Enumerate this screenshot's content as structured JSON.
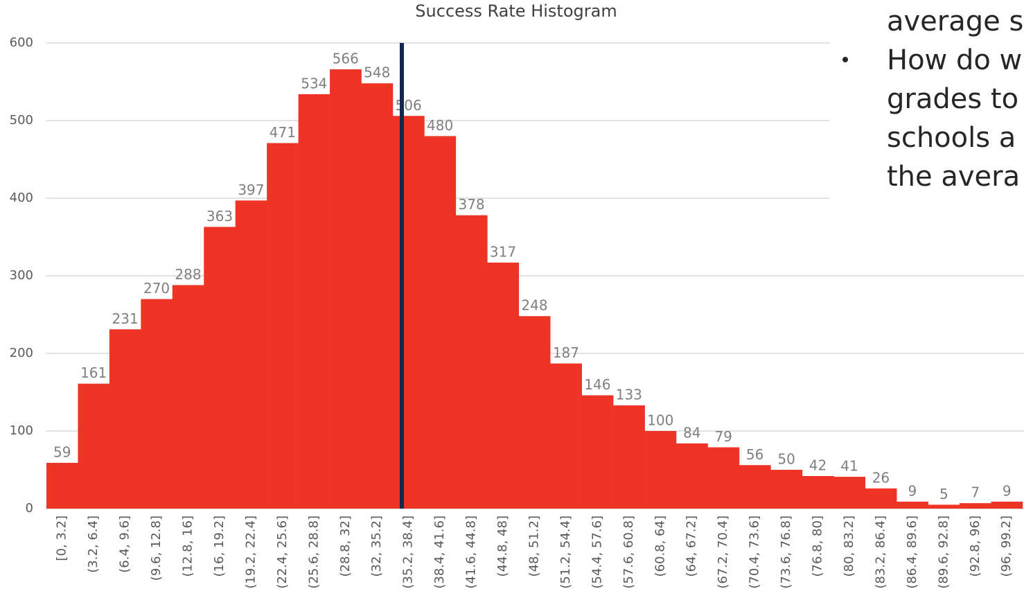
{
  "chart_data": {
    "type": "bar",
    "title": "Success Rate Histogram",
    "categories": [
      "[0, 3.2]",
      "(3.2, 6.4]",
      "(6.4, 9.6]",
      "(9.6, 12.8]",
      "(12.8, 16]",
      "(16, 19.2]",
      "(19.2, 22.4]",
      "(22.4, 25.6]",
      "(25.6, 28.8]",
      "(28.8, 32]",
      "(32, 35.2]",
      "(35.2, 38.4]",
      "(38.4, 41.6]",
      "(41.6, 44.8]",
      "(44.8, 48]",
      "(48, 51.2]",
      "(51.2, 54.4]",
      "(54.4, 57.6]",
      "(57.6, 60.8]",
      "(60.8, 64]",
      "(64, 67.2]",
      "(67.2, 70.4]",
      "(70.4, 73.6]",
      "(73.6, 76.8]",
      "(76.8, 80]",
      "(80, 83.2]",
      "(83.2, 86.4]",
      "(86.4, 89.6]",
      "(89.6, 92.8]",
      "(92.8, 96]",
      "(96, 99.2]"
    ],
    "values": [
      59,
      161,
      231,
      270,
      288,
      363,
      397,
      471,
      534,
      566,
      548,
      506,
      480,
      378,
      317,
      248,
      187,
      146,
      133,
      100,
      84,
      79,
      56,
      50,
      42,
      41,
      26,
      9,
      5,
      7,
      9
    ],
    "color": "#ee3424",
    "ylim": [
      0,
      600
    ],
    "yticks": [
      0,
      100,
      200,
      300,
      400,
      500,
      600
    ],
    "grid": true
  },
  "side_text": {
    "lines": [
      "average s",
      "How do w",
      "grades to",
      "schools a",
      "the avera"
    ]
  }
}
